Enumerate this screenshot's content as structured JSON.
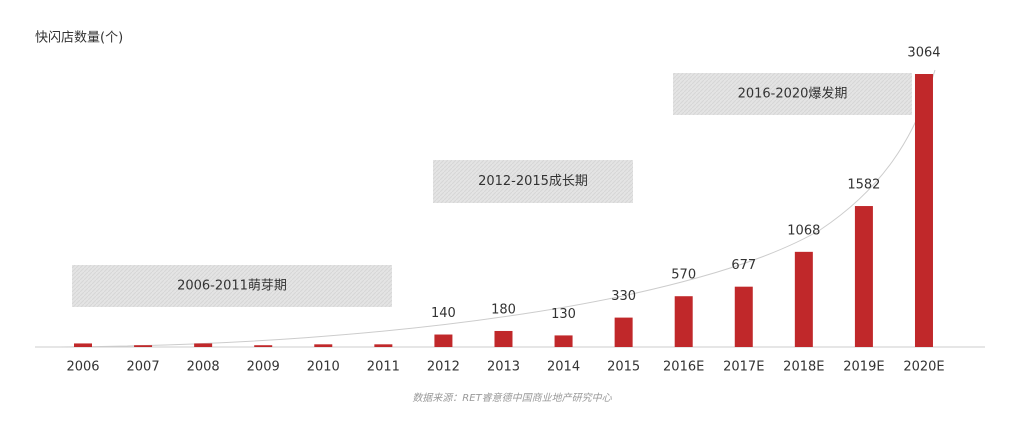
{
  "chart_data": {
    "type": "bar",
    "y_axis_label": "快闪店数量(个)",
    "categories": [
      "2006",
      "2007",
      "2008",
      "2009",
      "2010",
      "2011",
      "2012",
      "2013",
      "2014",
      "2015",
      "2016E",
      "2017E",
      "2018E",
      "2019E",
      "2020E"
    ],
    "values": [
      40,
      20,
      40,
      20,
      30,
      30,
      140,
      180,
      130,
      330,
      570,
      677,
      1068,
      1582,
      3064
    ],
    "value_labels": [
      null,
      null,
      null,
      null,
      null,
      null,
      "140",
      "180",
      "130",
      "330",
      "570",
      "677",
      "1068",
      "1582",
      "3064"
    ],
    "color": "#c0282a",
    "ylim": [
      0,
      3064
    ],
    "annotations": [
      "2006-2011萌芽期",
      "2012-2015成长期",
      "2016-2020爆发期"
    ],
    "source": "数据来源：RET睿意德中国商业地产研究中心"
  }
}
